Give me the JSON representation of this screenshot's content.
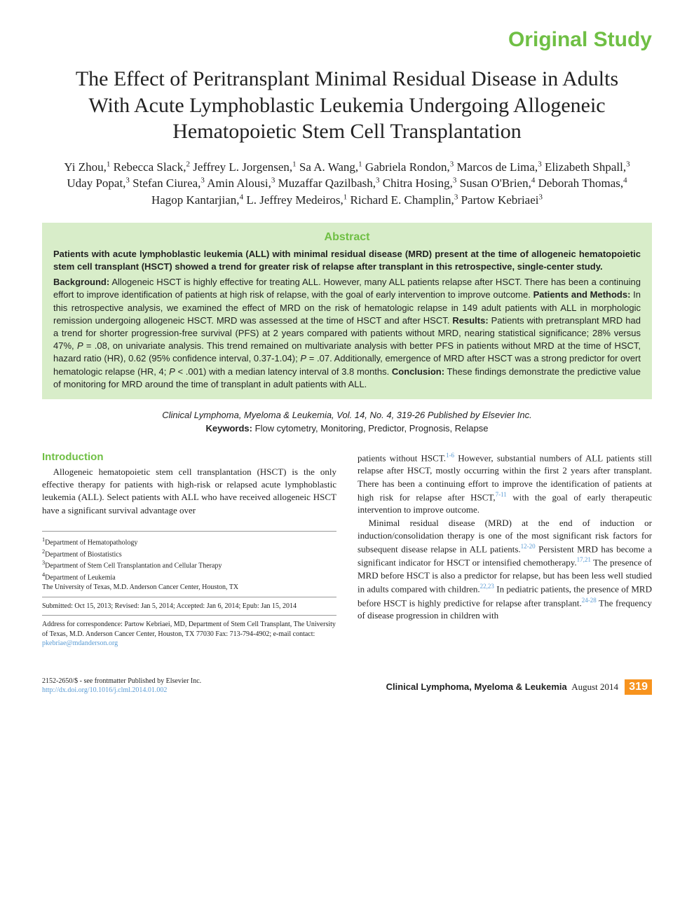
{
  "header_label": "Original Study",
  "title": "The Effect of Peritransplant Minimal Residual Disease in Adults With Acute Lymphoblastic Leukemia Undergoing Allogeneic Hematopoietic Stem Cell Transplantation",
  "authors_html": "Yi Zhou,<sup>1</sup> Rebecca Slack,<sup>2</sup> Jeffrey L. Jorgensen,<sup>1</sup> Sa A. Wang,<sup>1</sup> Gabriela Rondon,<sup>3</sup> Marcos de Lima,<sup>3</sup> Elizabeth Shpall,<sup>3</sup> Uday Popat,<sup>3</sup> Stefan Ciurea,<sup>3</sup> Amin Alousi,<sup>3</sup> Muzaffar Qazilbash,<sup>3</sup> Chitra Hosing,<sup>3</sup> Susan O'Brien,<sup>4</sup> Deborah Thomas,<sup>4</sup> Hagop Kantarjian,<sup>4</sup> L. Jeffrey Medeiros,<sup>1</sup> Richard E. Champlin,<sup>3</sup> Partow Kebriaei<sup>3</sup>",
  "abstract": {
    "heading": "Abstract",
    "lead": "Patients with acute lymphoblastic leukemia (ALL) with minimal residual disease (MRD) present at the time of allogeneic hematopoietic stem cell transplant (HSCT) showed a trend for greater risk of relapse after transplant in this retrospective, single-center study.",
    "body_html": "<b>Background:</b> Allogeneic HSCT is highly effective for treating ALL. However, many ALL patients relapse after HSCT. There has been a continuing effort to improve identification of patients at high risk of relapse, with the goal of early intervention to improve outcome. <b>Patients and Methods:</b> In this retrospective analysis, we examined the effect of MRD on the risk of hematologic relapse in 149 adult patients with ALL in morphologic remission undergoing allogeneic HSCT. MRD was assessed at the time of HSCT and after HSCT. <b>Results:</b> Patients with pretransplant MRD had a trend for shorter progression-free survival (PFS) at 2 years compared with patients without MRD, nearing statistical significance; 28% versus 47%, <i>P</i> = .08, on univariate analysis. This trend remained on multivariate analysis with better PFS in patients without MRD at the time of HSCT, hazard ratio (HR), 0.62 (95% confidence interval, 0.37-1.04); <i>P</i> = .07. Additionally, emergence of MRD after HSCT was a strong predictor for overt hematologic relapse (HR, 4; <i>P</i> < .001) with a median latency interval of 3.8 months. <b>Conclusion:</b> These findings demonstrate the predictive value of monitoring for MRD around the time of transplant in adult patients with ALL."
  },
  "citation": "Clinical Lymphoma, Myeloma & Leukemia, Vol. 14, No. 4, 319-26 Published by Elsevier Inc.",
  "keywords": {
    "label": "Keywords:",
    "text": "Flow cytometry, Monitoring, Predictor, Prognosis, Relapse"
  },
  "section_heading": "Introduction",
  "col1_html": "Allogeneic hematopoietic stem cell transplantation (HSCT) is the only effective therapy for patients with high-risk or relapsed acute lymphoblastic leukemia (ALL). Select patients with ALL who have received allogeneic HSCT have a significant survival advantage over",
  "col2_p1_html": "patients without HSCT.<sup class=\"ref\">1-6</sup> However, substantial numbers of ALL patients still relapse after HSCT, mostly occurring within the first 2 years after transplant. There has been a continuing effort to improve the identification of patients at high risk for relapse after HSCT,<sup class=\"ref\">7-11</sup> with the goal of early therapeutic intervention to improve outcome.",
  "col2_p2_html": "Minimal residual disease (MRD) at the end of induction or induction/consolidation therapy is one of the most significant risk factors for subsequent disease relapse in ALL patients.<sup class=\"ref\">12-20</sup> Persistent MRD has become a significant indicator for HSCT or intensified chemotherapy.<sup class=\"ref\">17,21</sup> The presence of MRD before HSCT is also a predictor for relapse, but has been less well studied in adults compared with children.<sup class=\"ref\">22,23</sup> In pediatric patients, the presence of MRD before HSCT is highly predictive for relapse after transplant.<sup class=\"ref\">24-28</sup> The frequency of disease progression in children with",
  "affiliations": {
    "depts": [
      "Department of Hematopathology",
      "Department of Biostatistics",
      "Department of Stem Cell Transplantation and Cellular Therapy",
      "Department of Leukemia"
    ],
    "institution": "The University of Texas, M.D. Anderson Cancer Center, Houston, TX",
    "submitted": "Submitted: Oct 15, 2013; Revised: Jan 5, 2014; Accepted: Jan 6, 2014; Epub: Jan 15, 2014",
    "correspondence": "Address for correspondence: Partow Kebriaei, MD, Department of Stem Cell Transplant, The University of Texas, M.D. Anderson Cancer Center, Houston, TX 77030 Fax: 713-794-4902; e-mail contact:",
    "email": "pkebriae@mdanderson.org"
  },
  "footer": {
    "issn": "2152-2650/$ - see frontmatter Published by Elsevier Inc.",
    "doi": "http://dx.doi.org/10.1016/j.clml.2014.01.002",
    "journal": "Clinical Lymphoma, Myeloma & Leukemia",
    "issue": "August 2014",
    "page": "319"
  },
  "colors": {
    "accent_green": "#6fbf44",
    "abstract_bg": "#d8edc9",
    "link_blue": "#5a9bd4",
    "page_orange": "#f7931e"
  }
}
